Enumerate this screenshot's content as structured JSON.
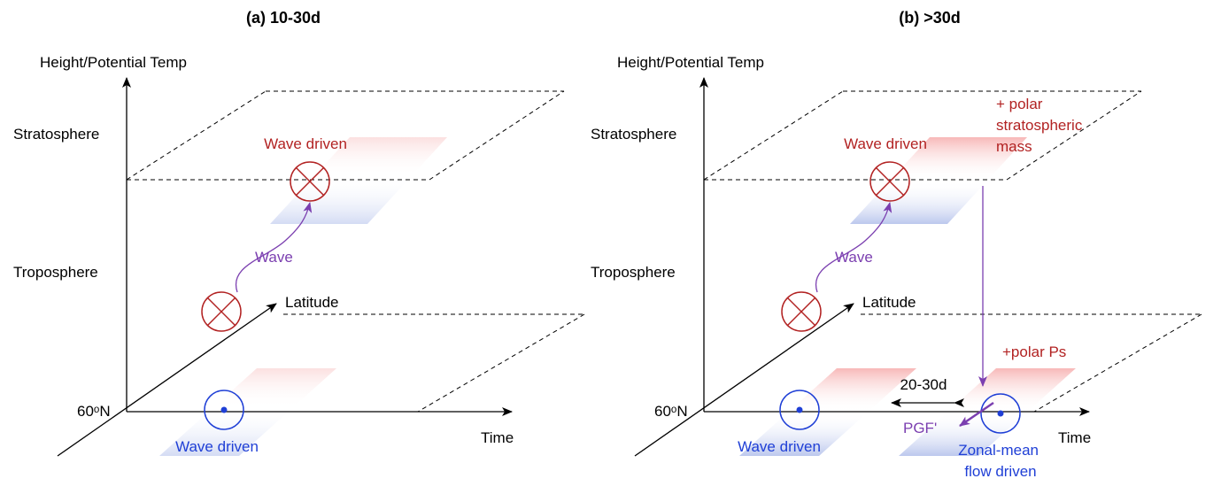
{
  "panels": [
    {
      "title": "(a) 10-30d",
      "y_axis": "Height/Potential Temp",
      "upper_level": "Stratosphere",
      "lower_level": "Troposphere",
      "latitude_axis": "Latitude",
      "origin_label": "60ᵒN",
      "x_axis": "Time",
      "upper_label": "Wave driven",
      "wave_label": "Wave",
      "lower_label": "Wave driven"
    },
    {
      "title": "(b) >30d",
      "y_axis": "Height/Potential Temp",
      "upper_level": "Stratosphere",
      "lower_level": "Troposphere",
      "latitude_axis": "Latitude",
      "origin_label": "60ᵒN",
      "x_axis": "Time",
      "upper_label": "Wave driven",
      "wave_label": "Wave",
      "lower_label": "Wave driven",
      "mass_label": [
        "+ polar",
        "stratospheric",
        "mass"
      ],
      "ps_label": "+polar Ps",
      "lag_label": "20-30d",
      "pgf_label": "PGF'",
      "flow_label": [
        "Zonal-mean",
        "flow driven"
      ]
    }
  ]
}
